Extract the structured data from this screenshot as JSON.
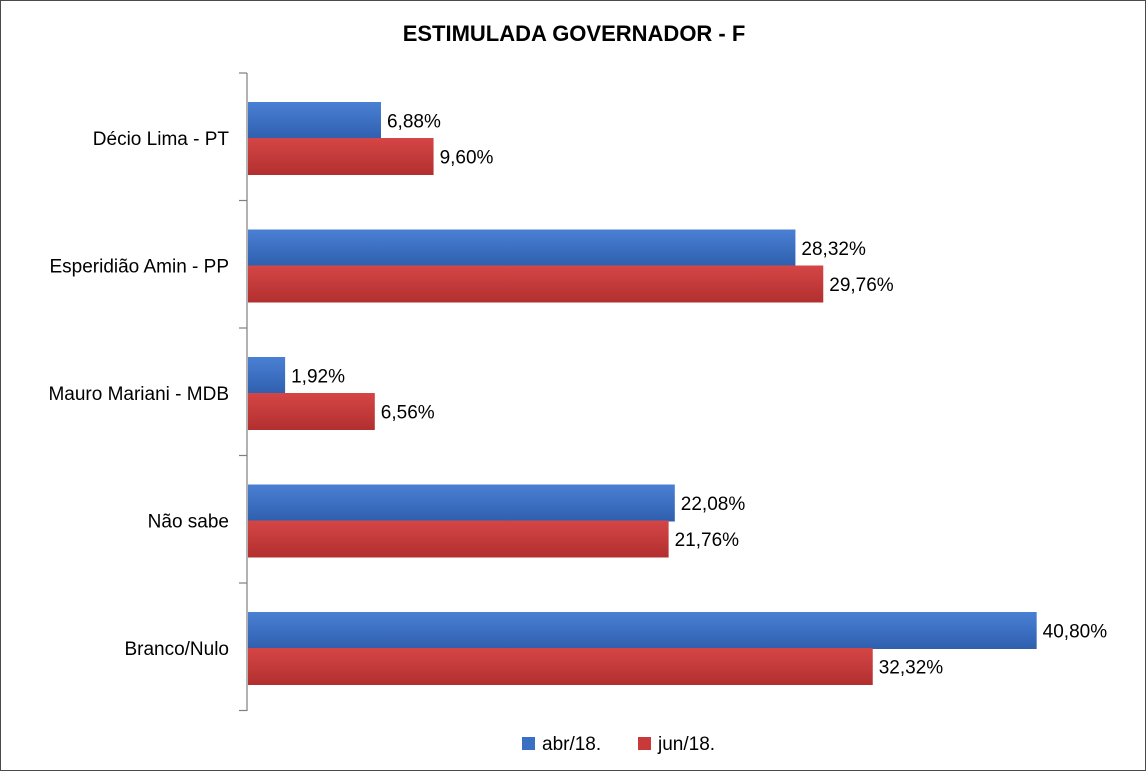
{
  "chart_data": {
    "type": "bar",
    "orientation": "horizontal",
    "title": "ESTIMULADA GOVERNADOR - F",
    "xlabel": "",
    "ylabel": "",
    "xlim": [
      0,
      42
    ],
    "grid": false,
    "legend_position": "bottom",
    "categories": [
      "Décio Lima - PT",
      "Esperidião Amin - PP",
      "Mauro Mariani - MDB",
      "Não sabe",
      "Branco/Nulo"
    ],
    "series": [
      {
        "name": "abr/18.",
        "color": "#3b6fc4",
        "values": [
          6.88,
          28.32,
          1.92,
          22.08,
          40.8
        ],
        "labels": [
          "6,88%",
          "28,32%",
          "1,92%",
          "22,08%",
          "40,80%"
        ]
      },
      {
        "name": "jun/18.",
        "color": "#c83a3a",
        "values": [
          9.6,
          29.76,
          6.56,
          21.76,
          32.32
        ],
        "labels": [
          "9,60%",
          "29,76%",
          "6,56%",
          "21,76%",
          "32,32%"
        ]
      }
    ]
  }
}
